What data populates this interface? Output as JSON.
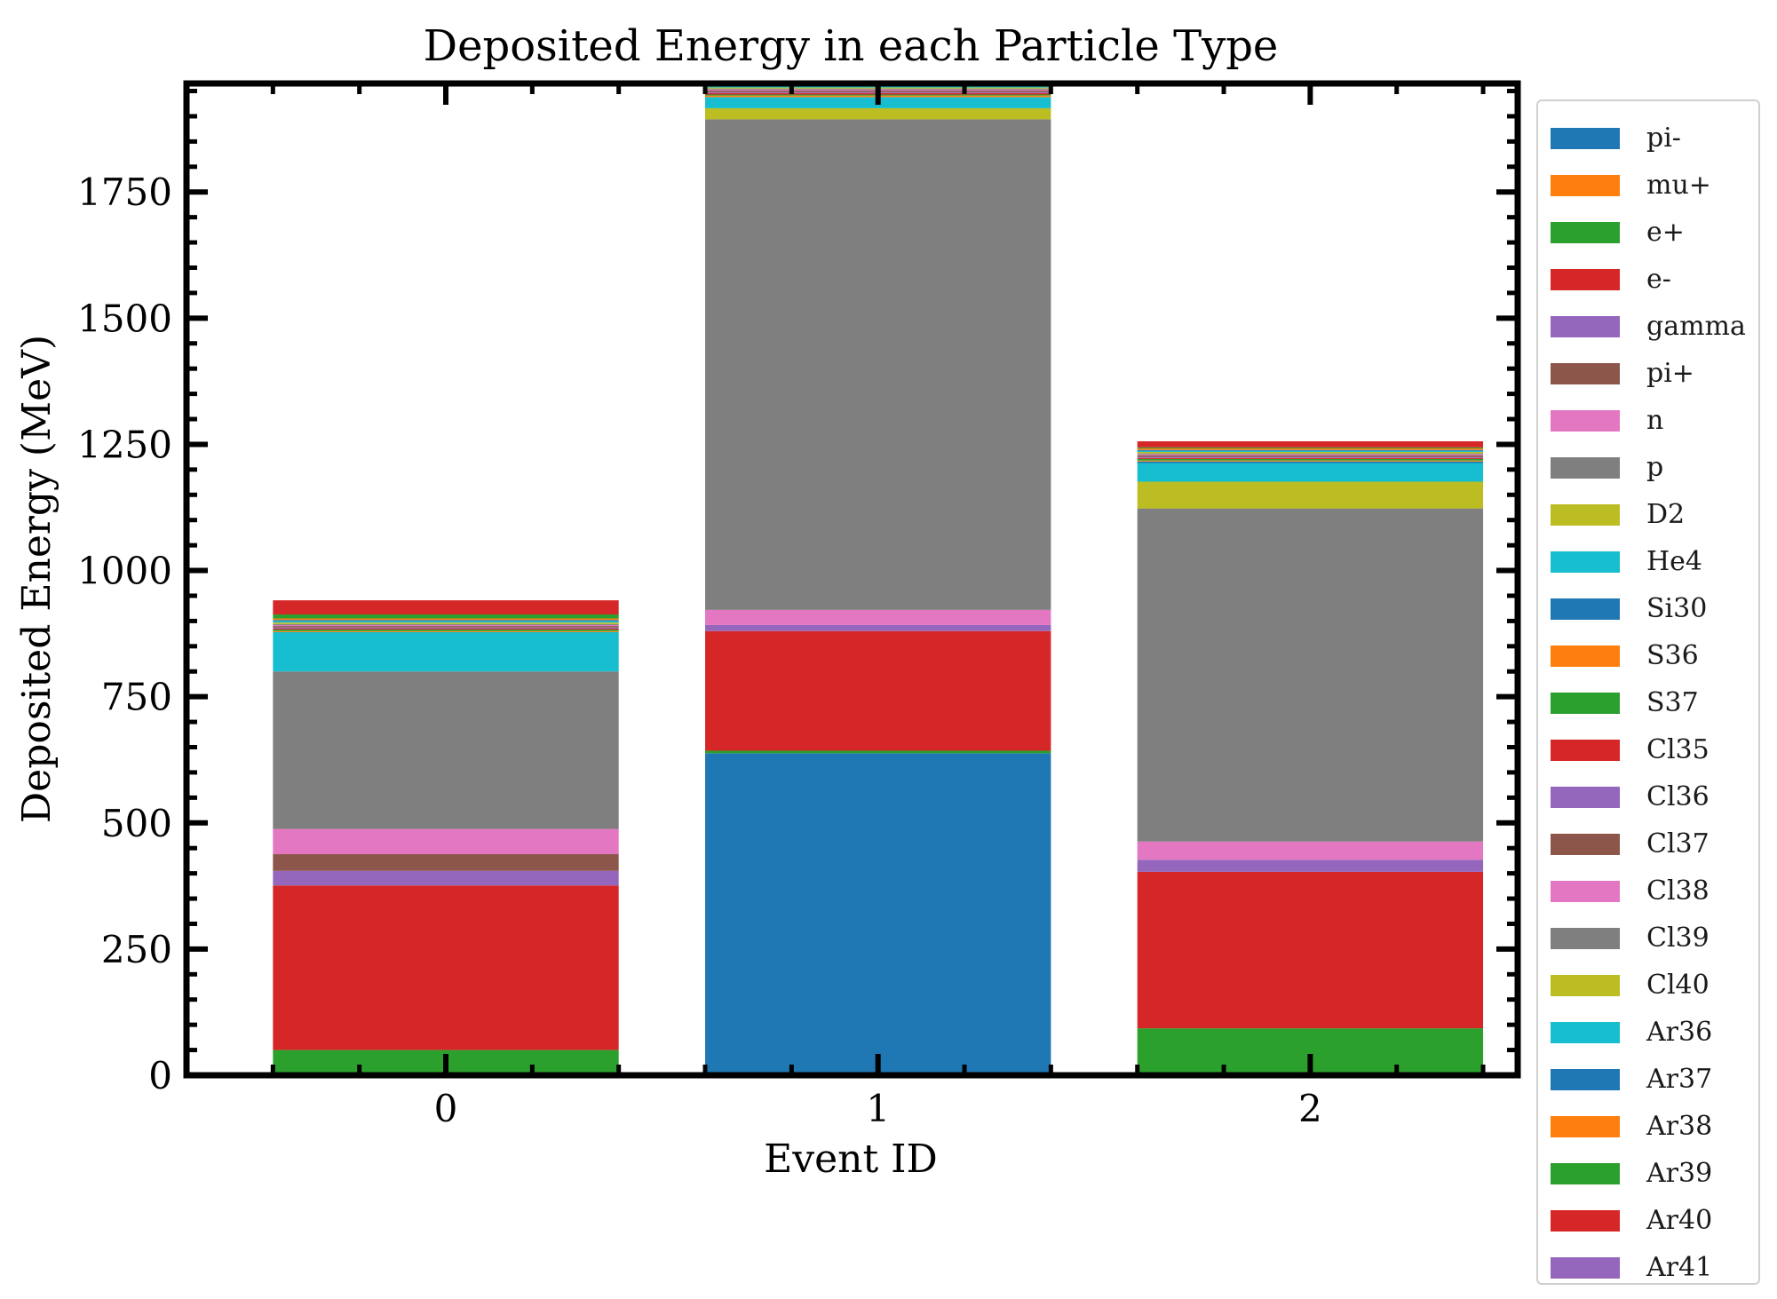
{
  "chart_data": {
    "type": "bar",
    "stacked": true,
    "title": "Deposited Energy in each Particle Type",
    "xlabel": "Event ID",
    "ylabel": "Deposited Energy (MeV)",
    "categories": [
      "0",
      "1",
      "2"
    ],
    "ylim": [
      0,
      1965
    ],
    "yticks": [
      0,
      250,
      500,
      750,
      1000,
      1250,
      1500,
      1750
    ],
    "grid": false,
    "legend_position": "outside right",
    "series": [
      {
        "name": "pi-",
        "color": "#1f77b4",
        "values": [
          0,
          638,
          0
        ]
      },
      {
        "name": "mu+",
        "color": "#ff7f0e",
        "values": [
          0,
          0,
          0
        ]
      },
      {
        "name": "e+",
        "color": "#2ca02c",
        "values": [
          50,
          5,
          93
        ]
      },
      {
        "name": "e-",
        "color": "#d62728",
        "values": [
          326,
          237,
          310
        ]
      },
      {
        "name": "gamma",
        "color": "#9467bd",
        "values": [
          29,
          12,
          24
        ]
      },
      {
        "name": "pi+",
        "color": "#8c564b",
        "values": [
          33,
          0,
          0
        ]
      },
      {
        "name": "n",
        "color": "#e377c2",
        "values": [
          50,
          30,
          36
        ]
      },
      {
        "name": "p",
        "color": "#7f7f7f",
        "values": [
          312,
          972,
          660
        ]
      },
      {
        "name": "D2",
        "color": "#bcbd22",
        "values": [
          0,
          22,
          53
        ]
      },
      {
        "name": "He4",
        "color": "#17becf",
        "values": [
          78,
          22,
          37
        ]
      },
      {
        "name": "Si30",
        "color": "#1f77b4",
        "values": [
          0,
          0,
          3
        ]
      },
      {
        "name": "S36",
        "color": "#ff7f0e",
        "values": [
          2,
          3,
          2
        ]
      },
      {
        "name": "S37",
        "color": "#2ca02c",
        "values": [
          3,
          2,
          3
        ]
      },
      {
        "name": "Cl35",
        "color": "#d62728",
        "values": [
          2,
          3,
          2
        ]
      },
      {
        "name": "Cl36",
        "color": "#9467bd",
        "values": [
          2,
          2,
          2
        ]
      },
      {
        "name": "Cl37",
        "color": "#8c564b",
        "values": [
          3,
          3,
          3
        ]
      },
      {
        "name": "Cl38",
        "color": "#e377c2",
        "values": [
          2,
          2,
          2
        ]
      },
      {
        "name": "Cl39",
        "color": "#7f7f7f",
        "values": [
          2,
          2,
          2
        ]
      },
      {
        "name": "Cl40",
        "color": "#bcbd22",
        "values": [
          3,
          2,
          3
        ]
      },
      {
        "name": "Ar36",
        "color": "#17becf",
        "values": [
          3,
          2,
          2
        ]
      },
      {
        "name": "Ar37",
        "color": "#1f77b4",
        "values": [
          2,
          2,
          2
        ]
      },
      {
        "name": "Ar38",
        "color": "#ff7f0e",
        "values": [
          3,
          3,
          3
        ]
      },
      {
        "name": "Ar39",
        "color": "#2ca02c",
        "values": [
          8,
          2,
          2
        ]
      },
      {
        "name": "Ar40",
        "color": "#d62728",
        "values": [
          28,
          2,
          12
        ]
      },
      {
        "name": "Ar41",
        "color": "#9467bd",
        "values": [
          0,
          0,
          0
        ]
      }
    ]
  }
}
